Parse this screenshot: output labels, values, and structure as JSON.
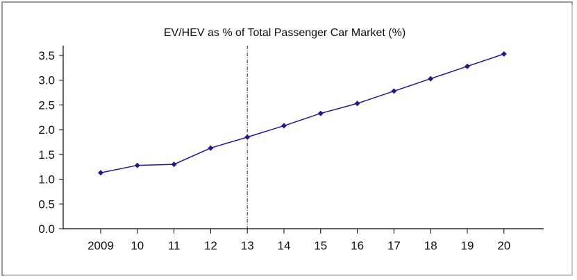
{
  "chart_data": {
    "type": "line",
    "title": "EV/HEV as % of Total Passenger Car Market (%)",
    "categories": [
      "2009",
      "10",
      "11",
      "12",
      "13",
      "14",
      "15",
      "16",
      "17",
      "18",
      "19",
      "20"
    ],
    "series": [
      {
        "values": [
          1.13,
          1.28,
          1.3,
          1.63,
          1.85,
          2.08,
          2.33,
          2.53,
          2.78,
          3.03,
          3.28,
          3.53
        ]
      }
    ],
    "ylim": [
      0,
      3.5
    ],
    "yticks": [
      "0.0",
      "0.5",
      "1.0",
      "1.5",
      "2.0",
      "2.5",
      "3.0",
      "3.5"
    ],
    "vertical_marker_category": "13",
    "grid": false,
    "colors": {
      "series": "#1f1a8c",
      "axis": "#000000",
      "marker_line": "#333333"
    }
  }
}
